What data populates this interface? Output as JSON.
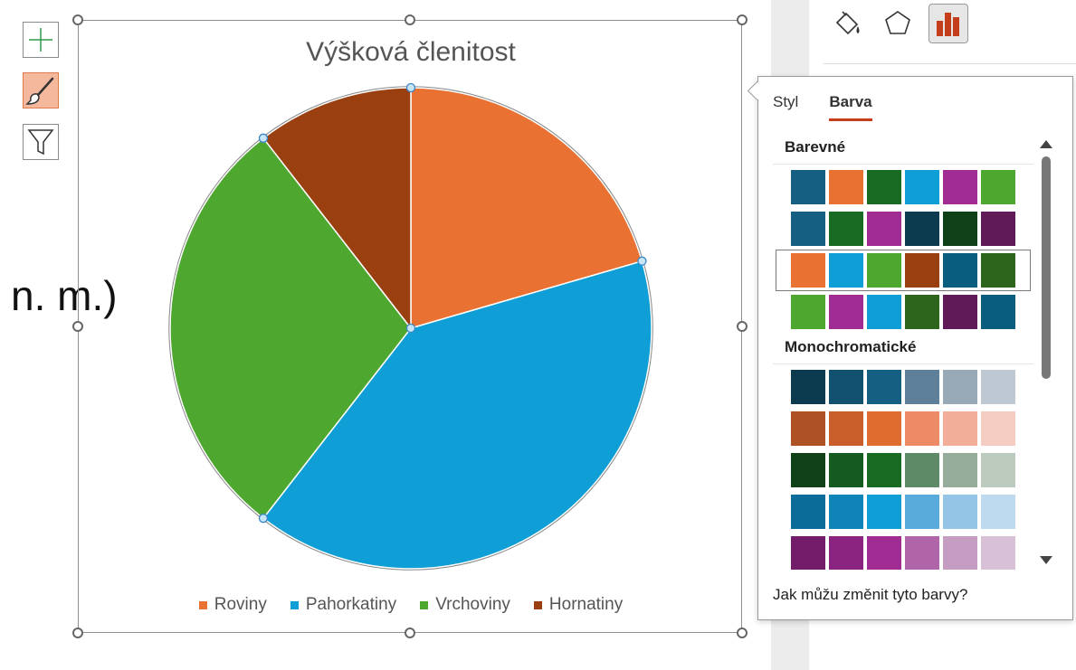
{
  "background_text": "n. m.)",
  "toolbar": {
    "items": [
      {
        "name": "add-chart-element-button",
        "icon": "plus-icon"
      },
      {
        "name": "chart-styles-button",
        "icon": "brush-icon",
        "active": true
      },
      {
        "name": "chart-filters-button",
        "icon": "filter-icon"
      }
    ]
  },
  "chart": {
    "title": "Výšková členitost"
  },
  "chart_data": {
    "type": "pie",
    "title": "Výšková členitost",
    "categories": [
      "Roviny",
      "Pahorkatiny",
      "Vrchoviny",
      "Hornatiny"
    ],
    "values": [
      20.5,
      40.0,
      29.0,
      10.5
    ],
    "colors": [
      "#E97132",
      "#0F9ED5",
      "#4EA72E",
      "#9A3F0F"
    ],
    "legend_position": "bottom"
  },
  "side_panel": {
    "icons": [
      "fill-icon",
      "pentagon-effects-icon",
      "bar-chart-options-icon"
    ],
    "selected_icon": "bar-chart-options-icon"
  },
  "popover": {
    "tabs": [
      "Styl",
      "Barva"
    ],
    "active_tab": "Barva",
    "sections": [
      {
        "title": "Barevné",
        "rows": [
          [
            "#156082",
            "#E97132",
            "#196B24",
            "#0F9ED5",
            "#A02B93",
            "#4EA72E"
          ],
          [
            "#156082",
            "#196B24",
            "#A02B93",
            "#0C3A4F",
            "#104018",
            "#601A58"
          ],
          [
            "#E97132",
            "#0F9ED5",
            "#4EA72E",
            "#9A3F0F",
            "#095E80",
            "#2E651C"
          ],
          [
            "#4EA72E",
            "#A02B93",
            "#0F9ED5",
            "#2E651C",
            "#601A58",
            "#095E80"
          ]
        ],
        "selected_row": 2
      },
      {
        "title": "Monochromatické",
        "rows": [
          [
            "#0C3A4F",
            "#11506E",
            "#156082",
            "#5E7F99",
            "#98A9B8",
            "#BEC8D2"
          ],
          [
            "#AE5125",
            "#C95E2A",
            "#E06D30",
            "#EC8B66",
            "#F2AE99",
            "#F5CCC2"
          ],
          [
            "#104018",
            "#145A21",
            "#196B24",
            "#5F8A68",
            "#95AD9A",
            "#BCCBBE"
          ],
          [
            "#0B6C99",
            "#0E84B8",
            "#0F9ED5",
            "#58ABDA",
            "#95C5E6",
            "#BDDAEF"
          ],
          [
            "#731C6A",
            "#8B2380",
            "#A02B93",
            "#AF65A7",
            "#C69DC2",
            "#D8C0D6"
          ]
        ]
      }
    ],
    "help_link": "Jak můžu změnit tyto barvy?"
  }
}
